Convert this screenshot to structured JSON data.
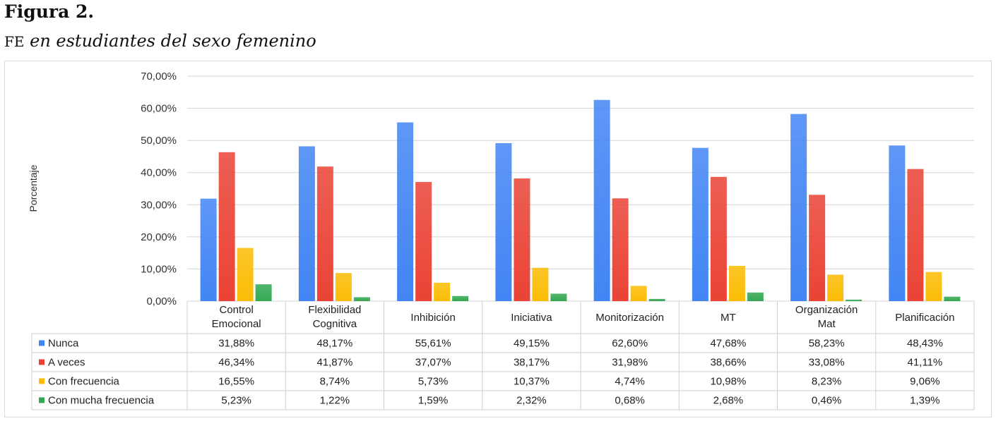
{
  "figure": {
    "label": "Figura 2.",
    "subtitle_prefix": "FE",
    "subtitle_rest": " en estudiantes del sexo femenino"
  },
  "chart_data": {
    "type": "bar",
    "title": "",
    "xlabel": "",
    "ylabel": "Porcentaje",
    "ylim": [
      0,
      70
    ],
    "yticks": [
      "0,00%",
      "10,00%",
      "20,00%",
      "30,00%",
      "40,00%",
      "50,00%",
      "60,00%",
      "70,00%"
    ],
    "grid": true,
    "legend": "data-table-left",
    "categories": [
      [
        "Control",
        "Emocional"
      ],
      [
        "Flexibilidad",
        "Cognitiva"
      ],
      [
        "Inhibición"
      ],
      [
        "Iniciativa"
      ],
      [
        "Monitorización"
      ],
      [
        "MT"
      ],
      [
        "Organización",
        "Mat"
      ],
      [
        "Planificación"
      ]
    ],
    "series": [
      {
        "name": "Nunca",
        "color": "#4285f4",
        "values": [
          31.88,
          48.17,
          55.61,
          49.15,
          62.6,
          47.68,
          58.23,
          48.43
        ],
        "labels": [
          "31,88%",
          "48,17%",
          "55,61%",
          "49,15%",
          "62,60%",
          "47,68%",
          "58,23%",
          "48,43%"
        ]
      },
      {
        "name": "A veces",
        "color": "#ea4335",
        "values": [
          46.34,
          41.87,
          37.07,
          38.17,
          31.98,
          38.66,
          33.08,
          41.11
        ],
        "labels": [
          "46,34%",
          "41,87%",
          "37,07%",
          "38,17%",
          "31,98%",
          "38,66%",
          "33,08%",
          "41,11%"
        ]
      },
      {
        "name": "Con frecuencia",
        "color": "#fbbc04",
        "values": [
          16.55,
          8.74,
          5.73,
          10.37,
          4.74,
          10.98,
          8.23,
          9.06
        ],
        "labels": [
          "16,55%",
          "8,74%",
          "5,73%",
          "10,37%",
          "4,74%",
          "10,98%",
          "8,23%",
          "9,06%"
        ]
      },
      {
        "name": "Con mucha frecuencia",
        "color": "#34a853",
        "values": [
          5.23,
          1.22,
          1.59,
          2.32,
          0.68,
          2.68,
          0.46,
          1.39
        ],
        "labels": [
          "5,23%",
          "1,22%",
          "1,59%",
          "2,32%",
          "0,68%",
          "2,68%",
          "0,46%",
          "1,39%"
        ]
      }
    ]
  }
}
